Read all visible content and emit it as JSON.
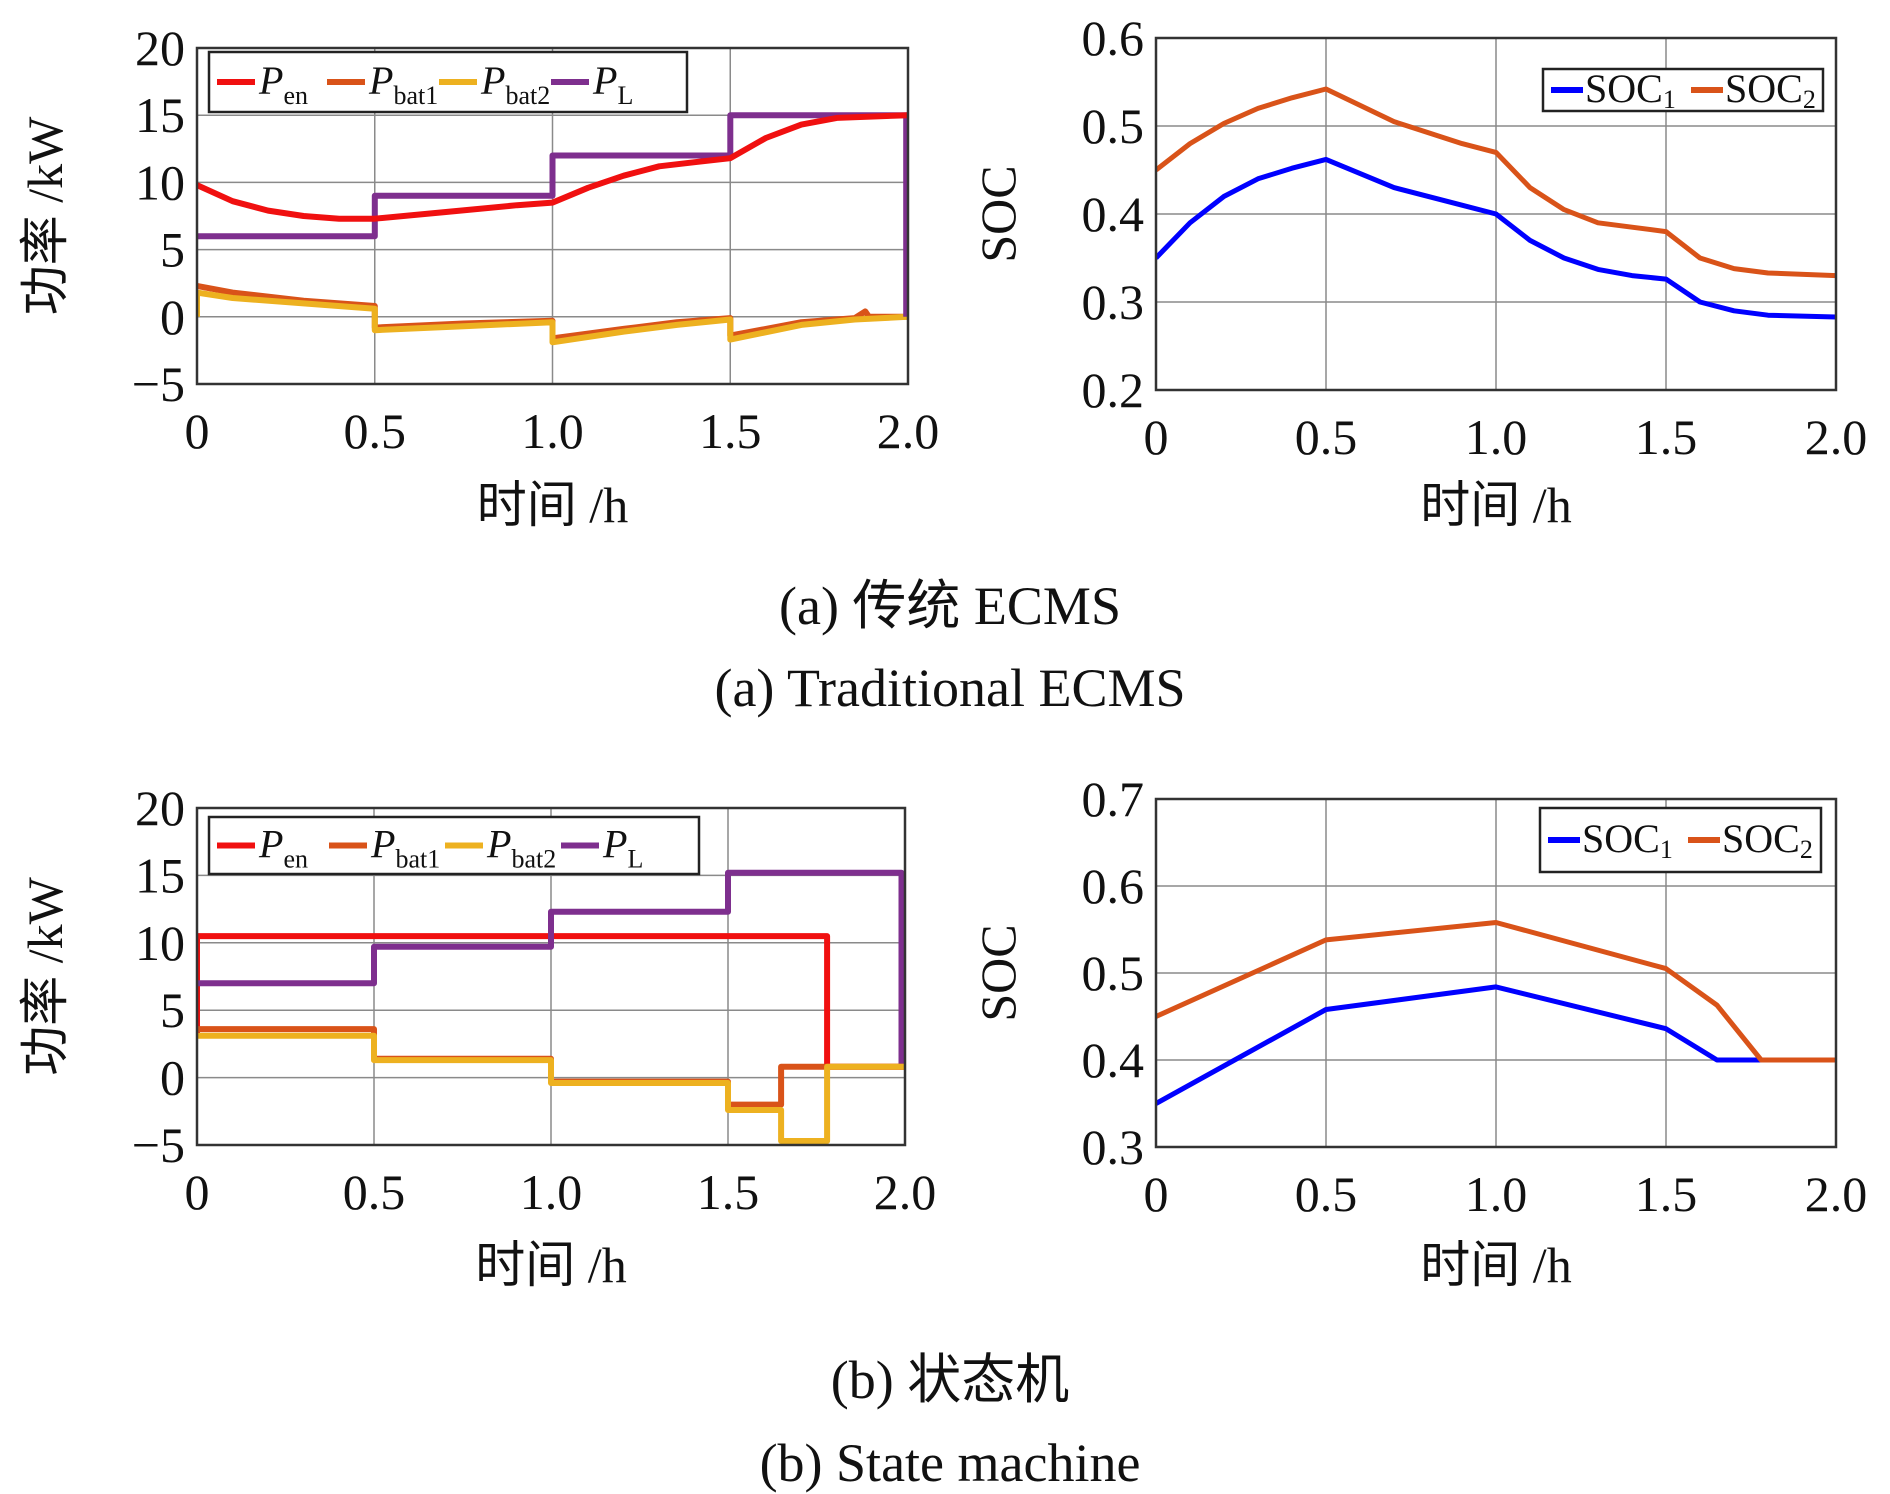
{
  "captions": {
    "a_cn": "(a) 传统 ECMS",
    "a_en": "(a) Traditional ECMS",
    "b_cn": "(b) 状态机",
    "b_en": "(b) State machine"
  },
  "colors": {
    "Pen": "#f01010",
    "Pbat1": "#d95319",
    "Pbat2": "#edb120",
    "PL": "#7e2f8e",
    "SOC1": "#0000ff",
    "SOC2": "#d95319"
  },
  "chart_data": [
    {
      "id": "power_a",
      "type": "line",
      "xlabel": "时间 /h",
      "ylabel": "功率 /kW",
      "xlim": [
        0,
        2
      ],
      "ylim": [
        -5,
        20
      ],
      "xticks": [
        0,
        0.5,
        1,
        1.5,
        2
      ],
      "xtick_labels": [
        "0",
        "0.5",
        "1.0",
        "1.5",
        "2.0"
      ],
      "yticks": [
        20,
        15,
        10,
        5,
        0,
        -5
      ],
      "ytick_labels": [
        "20",
        "15",
        "10",
        "5",
        "0",
        "−5"
      ],
      "grid": true,
      "legend_position": "top-left",
      "series": [
        {
          "key": "Pbat1",
          "name": "P",
          "sub": "bat1",
          "points": [
            [
              0,
              2.3
            ],
            [
              0.1,
              1.8
            ],
            [
              0.3,
              1.2
            ],
            [
              0.5,
              0.8
            ],
            [
              0.5,
              -0.8
            ],
            [
              0.75,
              -0.5
            ],
            [
              1.0,
              -0.3
            ],
            [
              1.0,
              -1.6
            ],
            [
              1.2,
              -0.9
            ],
            [
              1.35,
              -0.4
            ],
            [
              1.5,
              -0.1
            ],
            [
              1.5,
              -1.4
            ],
            [
              1.7,
              -0.4
            ],
            [
              1.85,
              -0.1
            ],
            [
              1.88,
              0.4
            ],
            [
              1.89,
              0
            ],
            [
              2.0,
              0
            ]
          ]
        },
        {
          "key": "Pbat2",
          "name": "P",
          "sub": "bat2",
          "points": [
            [
              0,
              0
            ],
            [
              0,
              1.8
            ],
            [
              0.1,
              1.4
            ],
            [
              0.3,
              1.0
            ],
            [
              0.5,
              0.6
            ],
            [
              0.5,
              -1.0
            ],
            [
              0.75,
              -0.7
            ],
            [
              1.0,
              -0.4
            ],
            [
              1.0,
              -1.9
            ],
            [
              1.2,
              -1.1
            ],
            [
              1.35,
              -0.6
            ],
            [
              1.5,
              -0.2
            ],
            [
              1.5,
              -1.7
            ],
            [
              1.7,
              -0.6
            ],
            [
              1.85,
              -0.2
            ],
            [
              2.0,
              0
            ]
          ]
        },
        {
          "key": "PL",
          "name": "P",
          "sub": "L",
          "points": [
            [
              0,
              6
            ],
            [
              0.5,
              6
            ],
            [
              0.5,
              9
            ],
            [
              1.0,
              9
            ],
            [
              1.0,
              12
            ],
            [
              1.5,
              12
            ],
            [
              1.5,
              15
            ],
            [
              1.995,
              15
            ],
            [
              1.995,
              0
            ]
          ]
        },
        {
          "key": "Pen",
          "name": "P",
          "sub": "en",
          "points": [
            [
              0,
              9.8
            ],
            [
              0.1,
              8.6
            ],
            [
              0.2,
              7.9
            ],
            [
              0.3,
              7.5
            ],
            [
              0.4,
              7.3
            ],
            [
              0.5,
              7.3
            ],
            [
              0.7,
              7.8
            ],
            [
              0.9,
              8.3
            ],
            [
              1.0,
              8.5
            ],
            [
              1.1,
              9.6
            ],
            [
              1.2,
              10.5
            ],
            [
              1.3,
              11.2
            ],
            [
              1.4,
              11.5
            ],
            [
              1.5,
              11.8
            ],
            [
              1.6,
              13.3
            ],
            [
              1.7,
              14.3
            ],
            [
              1.8,
              14.8
            ],
            [
              2.0,
              15
            ]
          ]
        }
      ],
      "legend_order": [
        "Pen",
        "Pbat1",
        "Pbat2",
        "PL"
      ]
    },
    {
      "id": "soc_a",
      "type": "line",
      "xlabel": "时间 /h",
      "ylabel": "SOC",
      "xlim": [
        0,
        2
      ],
      "ylim": [
        0.2,
        0.6
      ],
      "xticks": [
        0,
        0.5,
        1,
        1.5,
        2
      ],
      "xtick_labels": [
        "0",
        "0.5",
        "1.0",
        "1.5",
        "2.0"
      ],
      "yticks": [
        0.6,
        0.5,
        0.4,
        0.3,
        0.2
      ],
      "ytick_labels": [
        "0.6",
        "0.5",
        "0.4",
        "0.3",
        "0.2"
      ],
      "grid": true,
      "legend_position": "top-right",
      "series": [
        {
          "key": "SOC1",
          "name": "SOC",
          "sub": "1",
          "points": [
            [
              0,
              0.35
            ],
            [
              0.1,
              0.39
            ],
            [
              0.2,
              0.42
            ],
            [
              0.3,
              0.44
            ],
            [
              0.4,
              0.452
            ],
            [
              0.5,
              0.462
            ],
            [
              0.7,
              0.43
            ],
            [
              0.9,
              0.41
            ],
            [
              1.0,
              0.4
            ],
            [
              1.1,
              0.37
            ],
            [
              1.2,
              0.35
            ],
            [
              1.3,
              0.337
            ],
            [
              1.4,
              0.33
            ],
            [
              1.5,
              0.326
            ],
            [
              1.6,
              0.3
            ],
            [
              1.7,
              0.29
            ],
            [
              1.8,
              0.285
            ],
            [
              2.0,
              0.283
            ]
          ]
        },
        {
          "key": "SOC2",
          "name": "SOC",
          "sub": "2",
          "points": [
            [
              0,
              0.45
            ],
            [
              0.1,
              0.48
            ],
            [
              0.2,
              0.503
            ],
            [
              0.3,
              0.52
            ],
            [
              0.4,
              0.532
            ],
            [
              0.5,
              0.542
            ],
            [
              0.7,
              0.505
            ],
            [
              0.9,
              0.48
            ],
            [
              1.0,
              0.47
            ],
            [
              1.1,
              0.43
            ],
            [
              1.2,
              0.405
            ],
            [
              1.3,
              0.39
            ],
            [
              1.4,
              0.385
            ],
            [
              1.5,
              0.38
            ],
            [
              1.6,
              0.35
            ],
            [
              1.7,
              0.338
            ],
            [
              1.8,
              0.333
            ],
            [
              2.0,
              0.33
            ]
          ]
        }
      ],
      "legend_order": [
        "SOC1",
        "SOC2"
      ]
    },
    {
      "id": "power_b",
      "type": "line",
      "xlabel": "时间 /h",
      "ylabel": "功率 /kW",
      "xlim": [
        0,
        2
      ],
      "ylim": [
        -5,
        20
      ],
      "xticks": [
        0,
        0.5,
        1,
        1.5,
        2
      ],
      "xtick_labels": [
        "0",
        "0.5",
        "1.0",
        "1.5",
        "2.0"
      ],
      "yticks": [
        20,
        15,
        10,
        5,
        0,
        -5
      ],
      "ytick_labels": [
        "20",
        "15",
        "10",
        "5",
        "0",
        "−5"
      ],
      "grid": true,
      "legend_position": "top-left",
      "series": [
        {
          "key": "Pen",
          "name": "P",
          "sub": "en",
          "points": [
            [
              0,
              3
            ],
            [
              0,
              10.5
            ],
            [
              1.78,
              10.5
            ],
            [
              1.78,
              0.8
            ],
            [
              2.0,
              0.8
            ]
          ]
        },
        {
          "key": "PL",
          "name": "P",
          "sub": "L",
          "points": [
            [
              0,
              7
            ],
            [
              0.5,
              7
            ],
            [
              0.5,
              9.7
            ],
            [
              1.0,
              9.7
            ],
            [
              1.0,
              12.3
            ],
            [
              1.5,
              12.3
            ],
            [
              1.5,
              15.2
            ],
            [
              1.99,
              15.2
            ],
            [
              1.99,
              1
            ]
          ]
        },
        {
          "key": "Pbat1",
          "name": "P",
          "sub": "bat1",
          "points": [
            [
              0,
              3.6
            ],
            [
              0.5,
              3.6
            ],
            [
              0.5,
              1.4
            ],
            [
              1.0,
              1.4
            ],
            [
              1.0,
              -0.3
            ],
            [
              1.5,
              -0.3
            ],
            [
              1.5,
              -2.0
            ],
            [
              1.65,
              -2.0
            ],
            [
              1.65,
              0.8
            ],
            [
              2.0,
              0.8
            ]
          ]
        },
        {
          "key": "Pbat2",
          "name": "P",
          "sub": "bat2",
          "points": [
            [
              0,
              3.1
            ],
            [
              0.5,
              3.1
            ],
            [
              0.5,
              1.3
            ],
            [
              1.0,
              1.3
            ],
            [
              1.0,
              -0.4
            ],
            [
              1.5,
              -0.4
            ],
            [
              1.5,
              -2.4
            ],
            [
              1.65,
              -2.4
            ],
            [
              1.65,
              -4.7
            ],
            [
              1.78,
              -4.7
            ],
            [
              1.78,
              0.8
            ],
            [
              2.0,
              0.8
            ]
          ]
        }
      ],
      "legend_order": [
        "Pen",
        "Pbat1",
        "Pbat2",
        "PL"
      ]
    },
    {
      "id": "soc_b",
      "type": "line",
      "xlabel": "时间 /h",
      "ylabel": "SOC",
      "xlim": [
        0,
        2
      ],
      "ylim": [
        0.3,
        0.7
      ],
      "xticks": [
        0,
        0.5,
        1,
        1.5,
        2
      ],
      "xtick_labels": [
        "0",
        "0.5",
        "1.0",
        "1.5",
        "2.0"
      ],
      "yticks": [
        0.7,
        0.6,
        0.5,
        0.4,
        0.3
      ],
      "ytick_labels": [
        "0.7",
        "0.6",
        "0.5",
        "0.4",
        "0.3"
      ],
      "grid": true,
      "legend_position": "top-right",
      "series": [
        {
          "key": "SOC1",
          "name": "SOC",
          "sub": "1",
          "points": [
            [
              0,
              0.35
            ],
            [
              0.5,
              0.458
            ],
            [
              1.0,
              0.484
            ],
            [
              1.5,
              0.436
            ],
            [
              1.65,
              0.4
            ],
            [
              2.0,
              0.4
            ]
          ]
        },
        {
          "key": "SOC2",
          "name": "SOC",
          "sub": "2",
          "points": [
            [
              0,
              0.45
            ],
            [
              0.5,
              0.538
            ],
            [
              1.0,
              0.558
            ],
            [
              1.5,
              0.505
            ],
            [
              1.65,
              0.463
            ],
            [
              1.78,
              0.4
            ],
            [
              2.0,
              0.4
            ]
          ]
        }
      ],
      "legend_order": [
        "SOC1",
        "SOC2"
      ]
    }
  ]
}
